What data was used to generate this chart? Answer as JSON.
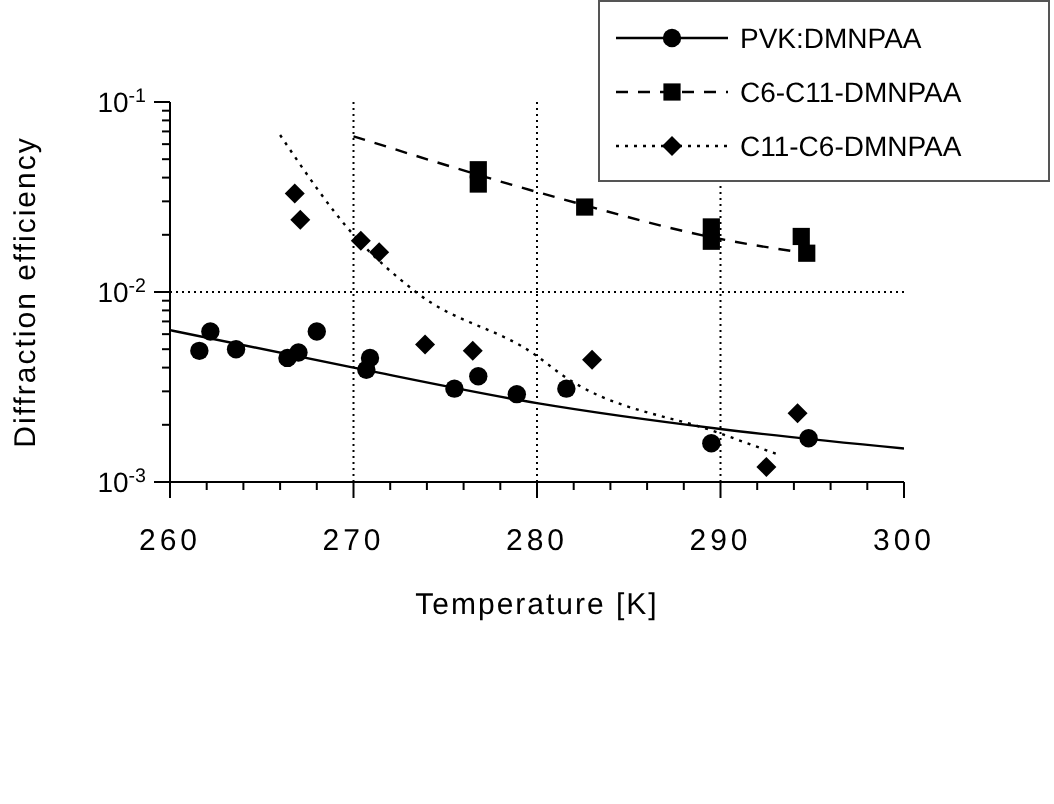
{
  "chart_data": {
    "type": "scatter",
    "xlabel": "Temperature [K]",
    "ylabel": "Diffraction efficiency",
    "xlim": [
      260,
      300
    ],
    "xticks": [
      260,
      {
        "value": 262,
        "label": null
      },
      {
        "value": 264,
        "label": null
      },
      {
        "value": 266,
        "label": null
      },
      {
        "value": 268,
        "label": null
      },
      270,
      {
        "value": 272,
        "label": null
      },
      {
        "value": 274,
        "label": null
      },
      {
        "value": 276,
        "label": null
      },
      {
        "value": 278,
        "label": null
      },
      280,
      {
        "value": 282,
        "label": null
      },
      {
        "value": 284,
        "label": null
      },
      {
        "value": 286,
        "label": null
      },
      {
        "value": 288,
        "label": null
      },
      290,
      {
        "value": 292,
        "label": null
      },
      {
        "value": 294,
        "label": null
      },
      {
        "value": 296,
        "label": null
      },
      {
        "value": 298,
        "label": null
      },
      300
    ],
    "ylim": [
      0.001,
      0.1
    ],
    "yticks": [
      {
        "value": 0.001,
        "label": "10$^{-3}$"
      },
      {
        "value": 0.002,
        "label": null
      },
      {
        "value": 0.003,
        "label": null
      },
      {
        "value": 0.004,
        "label": null
      },
      {
        "value": 0.005,
        "label": null
      },
      {
        "value": 0.006,
        "label": null
      },
      {
        "value": 0.007,
        "label": null
      },
      {
        "value": 0.008,
        "label": null
      },
      {
        "value": 0.009,
        "label": null
      },
      {
        "value": 0.01,
        "label": "10$^{-2}$"
      },
      {
        "value": 0.02,
        "label": null
      },
      {
        "value": 0.03,
        "label": null
      },
      {
        "value": 0.04,
        "label": null
      },
      {
        "value": 0.05,
        "label": null
      },
      {
        "value": 0.06,
        "label": null
      },
      {
        "value": 0.07,
        "label": null
      },
      {
        "value": 0.08,
        "label": null
      },
      {
        "value": 0.09,
        "label": null
      },
      {
        "value": 0.1,
        "label": "10$^{-1}$"
      }
    ],
    "log": "y",
    "grid": true,
    "legend": "top right",
    "series": [
      {
        "name": "PVK:DMNPAA",
        "color": "#000000",
        "marker": "circle",
        "x": [
          261.6,
          262.2,
          263.6,
          266.4,
          267.0,
          268.0,
          270.7,
          270.9,
          275.5,
          276.8,
          278.9,
          281.6,
          289.5,
          294.8
        ],
        "values": [
          0.0049,
          0.0062,
          0.005,
          0.0045,
          0.0048,
          0.0062,
          0.0039,
          0.0045,
          0.0031,
          0.0036,
          0.0029,
          0.0031,
          0.0016,
          0.0017
        ]
      },
      {
        "type": "line",
        "color": "#000000",
        "line_style": "solid",
        "marker": "none",
        "x": [
          260,
          270,
          280,
          290,
          300
        ],
        "values": [
          0.0063,
          0.004,
          0.0026,
          0.0019,
          0.0015
        ]
      },
      {
        "name": "C6-C11-DMNPAA",
        "color": "#000000",
        "marker": "square",
        "x": [
          276.8,
          276.8,
          282.6,
          289.5,
          289.5,
          294.4,
          294.7
        ],
        "values": [
          0.044,
          0.037,
          0.028,
          0.022,
          0.0185,
          0.0196,
          0.016
        ]
      },
      {
        "type": "line",
        "color": "#000000",
        "line_style": "dashed",
        "marker": "none",
        "x": [
          270,
          281.3,
          290,
          294.7
        ],
        "values": [
          0.066,
          0.031,
          0.019,
          0.016
        ]
      },
      {
        "name": "C11-C6-DMNPAA",
        "color": "#000000",
        "marker": "diamond",
        "x": [
          266.8,
          267.1,
          270.4,
          271.4,
          273.9,
          276.5,
          283.0,
          292.5,
          294.2
        ],
        "values": [
          0.033,
          0.024,
          0.0186,
          0.0162,
          0.0053,
          0.0049,
          0.0044,
          0.0012,
          0.0023
        ]
      },
      {
        "type": "line",
        "color": "#000000",
        "line_style": "dotted",
        "marker": "none",
        "x": [
          266,
          270,
          273.4,
          280,
          281.3,
          290,
          293.1
        ],
        "values": [
          0.067,
          0.02,
          0.01,
          0.0046,
          0.0037,
          0.0018,
          0.0014
        ]
      }
    ]
  }
}
